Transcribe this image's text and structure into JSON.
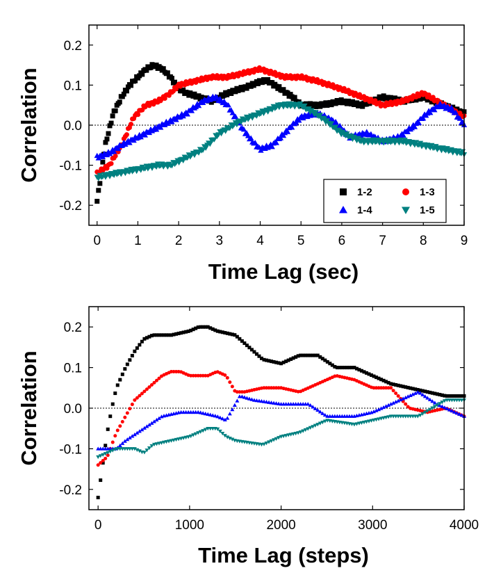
{
  "chart_data": [
    {
      "type": "scatter",
      "xlabel": "Time Lag (sec)",
      "ylabel": "Correlation",
      "xlim": [
        -0.2,
        9
      ],
      "ylim": [
        -0.25,
        0.25
      ],
      "xticks": [
        0,
        1,
        2,
        3,
        4,
        5,
        6,
        7,
        8,
        9
      ],
      "yticks": [
        -0.2,
        -0.1,
        0.0,
        0.1,
        0.2
      ],
      "yticklabels": [
        "-0.2",
        "-0.1",
        "0.0",
        "0.1",
        "0.2"
      ],
      "reference_line": 0.0,
      "legend": {
        "placement": "bottom-right",
        "columns": 2,
        "entries": [
          "1-2",
          "1-3",
          "1-4",
          "1-5"
        ]
      },
      "series": [
        {
          "name": "1-2",
          "color": "#000000",
          "marker": "square",
          "x": [
            0,
            0.2,
            0.4,
            0.6,
            0.8,
            1.0,
            1.2,
            1.4,
            1.6,
            1.8,
            2.0,
            2.2,
            2.5,
            2.8,
            3.0,
            3.2,
            3.5,
            3.8,
            4.0,
            4.2,
            4.5,
            4.8,
            5.0,
            5.5,
            6.0,
            6.5,
            7.0,
            7.5,
            8.0,
            8.5,
            9.0
          ],
          "y": [
            -0.19,
            -0.05,
            0.03,
            0.07,
            0.1,
            0.12,
            0.14,
            0.15,
            0.14,
            0.12,
            0.09,
            0.08,
            0.07,
            0.06,
            0.07,
            0.08,
            0.09,
            0.1,
            0.11,
            0.11,
            0.09,
            0.07,
            0.05,
            0.05,
            0.06,
            0.05,
            0.07,
            0.06,
            0.07,
            0.05,
            0.03
          ]
        },
        {
          "name": "1-3",
          "color": "#ff0000",
          "marker": "circle",
          "x": [
            0,
            0.3,
            0.6,
            0.9,
            1.2,
            1.5,
            1.8,
            2.0,
            2.4,
            2.8,
            3.2,
            3.6,
            4.0,
            4.3,
            4.6,
            5.0,
            5.4,
            6.0,
            6.5,
            7.0,
            7.5,
            8.0,
            8.5,
            9.0
          ],
          "y": [
            -0.12,
            -0.1,
            -0.05,
            0.02,
            0.05,
            0.06,
            0.08,
            0.1,
            0.11,
            0.12,
            0.12,
            0.13,
            0.14,
            0.13,
            0.12,
            0.12,
            0.11,
            0.09,
            0.07,
            0.05,
            0.06,
            0.08,
            0.05,
            0.02
          ]
        },
        {
          "name": "1-4",
          "color": "#0000ff",
          "marker": "triangle-up",
          "x": [
            0,
            0.3,
            0.6,
            1.0,
            1.4,
            1.8,
            2.2,
            2.6,
            2.9,
            3.2,
            3.5,
            3.8,
            4.0,
            4.3,
            4.6,
            5.0,
            5.4,
            5.8,
            6.2,
            6.6,
            7.0,
            7.4,
            7.8,
            8.1,
            8.4,
            8.7,
            9.0
          ],
          "y": [
            -0.08,
            -0.07,
            -0.05,
            -0.03,
            -0.01,
            0.01,
            0.03,
            0.06,
            0.07,
            0.05,
            0.0,
            -0.04,
            -0.06,
            -0.05,
            -0.02,
            0.02,
            0.03,
            0.01,
            -0.03,
            -0.02,
            -0.04,
            -0.03,
            0.0,
            0.03,
            0.05,
            0.04,
            0.0
          ]
        },
        {
          "name": "1-5",
          "color": "#008080",
          "marker": "triangle-down",
          "x": [
            0,
            0.5,
            1.0,
            1.5,
            1.8,
            2.2,
            2.6,
            3.0,
            3.5,
            4.0,
            4.5,
            5.0,
            5.5,
            6.0,
            6.5,
            7.0,
            7.5,
            8.0,
            8.5,
            9.0
          ],
          "y": [
            -0.13,
            -0.12,
            -0.11,
            -0.1,
            -0.1,
            -0.08,
            -0.06,
            -0.02,
            0.01,
            0.03,
            0.05,
            0.05,
            0.02,
            -0.02,
            -0.04,
            -0.04,
            -0.04,
            -0.05,
            -0.06,
            -0.07
          ]
        }
      ]
    },
    {
      "type": "scatter",
      "xlabel": "Time Lag (steps)",
      "ylabel": "Correlation",
      "xlim": [
        -100,
        4000
      ],
      "ylim": [
        -0.25,
        0.25
      ],
      "xticks": [
        0,
        1000,
        2000,
        3000,
        4000
      ],
      "yticks": [
        -0.2,
        -0.1,
        0.0,
        0.1,
        0.2
      ],
      "yticklabels": [
        "-0.2",
        "-0.1",
        "0.0",
        "0.1",
        "0.2"
      ],
      "reference_line": 0.0,
      "series": [
        {
          "name": "1-2",
          "color": "#000000",
          "marker": "square",
          "x": [
            0,
            50,
            100,
            150,
            200,
            300,
            400,
            500,
            600,
            800,
            1000,
            1100,
            1200,
            1300,
            1500,
            1700,
            1800,
            2000,
            2200,
            2400,
            2600,
            2800,
            3000,
            3200,
            3400,
            3600,
            3800,
            4000
          ],
          "y": [
            -0.22,
            -0.14,
            -0.06,
            0.0,
            0.05,
            0.1,
            0.14,
            0.17,
            0.18,
            0.18,
            0.19,
            0.2,
            0.2,
            0.19,
            0.18,
            0.14,
            0.12,
            0.11,
            0.13,
            0.13,
            0.1,
            0.1,
            0.08,
            0.06,
            0.05,
            0.04,
            0.03,
            0.03
          ]
        },
        {
          "name": "1-3",
          "color": "#ff0000",
          "marker": "circle",
          "x": [
            0,
            100,
            200,
            300,
            400,
            500,
            600,
            700,
            800,
            900,
            1000,
            1100,
            1200,
            1300,
            1400,
            1500,
            1600,
            1800,
            2000,
            2200,
            2400,
            2600,
            2800,
            3000,
            3200,
            3400,
            3600,
            3800,
            4000
          ],
          "y": [
            -0.14,
            -0.12,
            -0.06,
            -0.02,
            0.02,
            0.04,
            0.06,
            0.08,
            0.09,
            0.09,
            0.08,
            0.08,
            0.08,
            0.09,
            0.08,
            0.04,
            0.04,
            0.05,
            0.05,
            0.04,
            0.06,
            0.08,
            0.07,
            0.05,
            0.05,
            0.0,
            -0.01,
            0.0,
            -0.02
          ]
        },
        {
          "name": "1-4",
          "color": "#0000ff",
          "marker": "triangle-up",
          "x": [
            0,
            200,
            300,
            500,
            700,
            900,
            1100,
            1300,
            1400,
            1550,
            1700,
            2000,
            2300,
            2500,
            2800,
            3000,
            3200,
            3500,
            3700,
            4000
          ],
          "y": [
            -0.1,
            -0.1,
            -0.08,
            -0.05,
            -0.02,
            -0.01,
            -0.01,
            -0.02,
            -0.03,
            0.03,
            0.02,
            0.01,
            0.01,
            -0.02,
            -0.02,
            -0.01,
            0.01,
            0.04,
            0.01,
            -0.02
          ]
        },
        {
          "name": "1-5",
          "color": "#008080",
          "marker": "triangle-down",
          "x": [
            0,
            200,
            400,
            500,
            600,
            800,
            1000,
            1200,
            1300,
            1400,
            1500,
            1800,
            2000,
            2200,
            2500,
            2800,
            3000,
            3200,
            3500,
            3800,
            4000
          ],
          "y": [
            -0.12,
            -0.1,
            -0.1,
            -0.11,
            -0.09,
            -0.08,
            -0.07,
            -0.05,
            -0.05,
            -0.07,
            -0.08,
            -0.09,
            -0.07,
            -0.06,
            -0.03,
            -0.04,
            -0.03,
            -0.02,
            -0.02,
            0.02,
            0.02
          ]
        }
      ]
    }
  ]
}
